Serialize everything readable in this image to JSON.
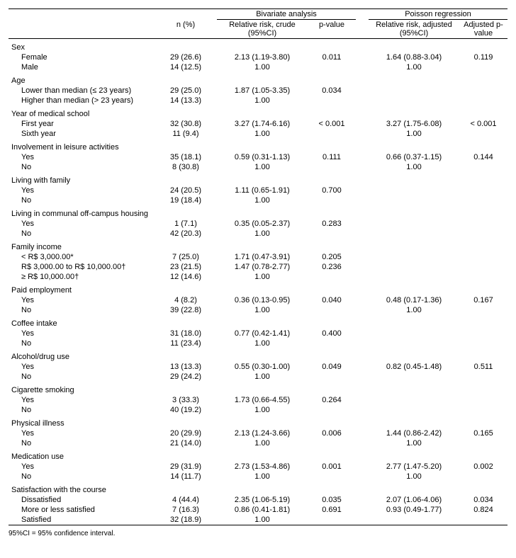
{
  "header": {
    "group_bivariate": "Bivariate analysis",
    "group_poisson": "Poisson regression",
    "col_n": "n (%)",
    "col_rr_crude": "Relative risk, crude (95%CI)",
    "col_p": "p-value",
    "col_rr_adj": "Relative risk, adjusted (95%CI)",
    "col_p_adj": "Adjusted p-value"
  },
  "sections": [
    {
      "label": "Sex",
      "rows": [
        {
          "label": "Female",
          "n": "29 (26.6)",
          "rr": "2.13 (1.19-3.80)",
          "p": "0.011",
          "rr_adj": "1.64 (0.88-3.04)",
          "p_adj": "0.119"
        },
        {
          "label": "Male",
          "n": "14 (12.5)",
          "rr": "1.00",
          "p": "",
          "rr_adj": "1.00",
          "p_adj": ""
        }
      ]
    },
    {
      "label": "Age",
      "rows": [
        {
          "label": "Lower than median (≤ 23 years)",
          "n": "29 (25.0)",
          "rr": "1.87 (1.05-3.35)",
          "p": "0.034",
          "rr_adj": "",
          "p_adj": ""
        },
        {
          "label": "Higher than median (> 23 years)",
          "n": "14 (13.3)",
          "rr": "1.00",
          "p": "",
          "rr_adj": "",
          "p_adj": ""
        }
      ]
    },
    {
      "label": "Year of medical school",
      "rows": [
        {
          "label": "First year",
          "n": "32 (30.8)",
          "rr": "3.27 (1.74-6.16)",
          "p": "< 0.001",
          "rr_adj": "3.27 (1.75-6.08)",
          "p_adj": "< 0.001"
        },
        {
          "label": "Sixth year",
          "n": "11 (9.4)",
          "rr": "1.00",
          "p": "",
          "rr_adj": "1.00",
          "p_adj": ""
        }
      ]
    },
    {
      "label": "Involvement in leisure activities",
      "rows": [
        {
          "label": "Yes",
          "n": "35 (18.1)",
          "rr": "0.59 (0.31-1.13)",
          "p": "0.111",
          "rr_adj": "0.66 (0.37-1.15)",
          "p_adj": "0.144"
        },
        {
          "label": "No",
          "n": "8 (30.8)",
          "rr": "1.00",
          "p": "",
          "rr_adj": "1.00",
          "p_adj": ""
        }
      ]
    },
    {
      "label": "Living with family",
      "rows": [
        {
          "label": "Yes",
          "n": "24 (20.5)",
          "rr": "1.11 (0.65-1.91)",
          "p": "0.700",
          "rr_adj": "",
          "p_adj": ""
        },
        {
          "label": "No",
          "n": "19 (18.4)",
          "rr": "1.00",
          "p": "",
          "rr_adj": "",
          "p_adj": ""
        }
      ]
    },
    {
      "label": "Living in communal off-campus housing",
      "rows": [
        {
          "label": "Yes",
          "n": "1 (7.1)",
          "rr": "0.35 (0.05-2.37)",
          "p": "0.283",
          "rr_adj": "",
          "p_adj": ""
        },
        {
          "label": "No",
          "n": "42 (20.3)",
          "rr": "1.00",
          "p": "",
          "rr_adj": "",
          "p_adj": ""
        }
      ]
    },
    {
      "label": "Family income",
      "rows": [
        {
          "label": "< R$ 3,000.00*",
          "n": "7 (25.0)",
          "rr": "1.71 (0.47-3.91)",
          "p": "0.205",
          "rr_adj": "",
          "p_adj": ""
        },
        {
          "label": "R$ 3,000.00 to R$ 10,000.00†",
          "n": "23 (21.5)",
          "rr": "1.47 (0.78-2.77)",
          "p": "0.236",
          "rr_adj": "",
          "p_adj": ""
        },
        {
          "label": "≥ R$ 10,000.00†",
          "n": "12 (14.6)",
          "rr": "1.00",
          "p": "",
          "rr_adj": "",
          "p_adj": ""
        }
      ]
    },
    {
      "label": "Paid employment",
      "rows": [
        {
          "label": "Yes",
          "n": "4 (8.2)",
          "rr": "0.36 (0.13-0.95)",
          "p": "0.040",
          "rr_adj": "0.48 (0.17-1.36)",
          "p_adj": "0.167"
        },
        {
          "label": "No",
          "n": "39 (22.8)",
          "rr": "1.00",
          "p": "",
          "rr_adj": "1.00",
          "p_adj": ""
        }
      ]
    },
    {
      "label": "Coffee intake",
      "rows": [
        {
          "label": "Yes",
          "n": "31 (18.0)",
          "rr": "0.77 (0.42-1.41)",
          "p": "0.400",
          "rr_adj": "",
          "p_adj": ""
        },
        {
          "label": "No",
          "n": "11 (23.4)",
          "rr": "1.00",
          "p": "",
          "rr_adj": "",
          "p_adj": ""
        }
      ]
    },
    {
      "label": "Alcohol/drug use",
      "rows": [
        {
          "label": "Yes",
          "n": "13 (13.3)",
          "rr": "0.55 (0.30-1.00)",
          "p": "0.049",
          "rr_adj": "0.82 (0.45-1.48)",
          "p_adj": "0.511"
        },
        {
          "label": "No",
          "n": "29 (24.2)",
          "rr": "1.00",
          "p": "",
          "rr_adj": "",
          "p_adj": ""
        }
      ]
    },
    {
      "label": "Cigarette smoking",
      "rows": [
        {
          "label": "Yes",
          "n": "3 (33.3)",
          "rr": "1.73 (0.66-4.55)",
          "p": "0.264",
          "rr_adj": "",
          "p_adj": ""
        },
        {
          "label": "No",
          "n": "40 (19.2)",
          "rr": "1.00",
          "p": "",
          "rr_adj": "",
          "p_adj": ""
        }
      ]
    },
    {
      "label": "Physical illness",
      "rows": [
        {
          "label": "Yes",
          "n": "20 (29.9)",
          "rr": "2.13 (1.24-3.66)",
          "p": "0.006",
          "rr_adj": "1.44 (0.86-2.42)",
          "p_adj": "0.165"
        },
        {
          "label": "No",
          "n": "21 (14.0)",
          "rr": "1.00",
          "p": "",
          "rr_adj": "1.00",
          "p_adj": ""
        }
      ]
    },
    {
      "label": "Medication use",
      "rows": [
        {
          "label": "Yes",
          "n": "29 (31.9)",
          "rr": "2.73 (1.53-4.86)",
          "p": "0.001",
          "rr_adj": "2.77 (1.47-5.20)",
          "p_adj": "0.002"
        },
        {
          "label": "No",
          "n": "14 (11.7)",
          "rr": "1.00",
          "p": "",
          "rr_adj": "1.00",
          "p_adj": ""
        }
      ]
    },
    {
      "label": "Satisfaction with the course",
      "rows": [
        {
          "label": "Dissatisfied",
          "n": "4 (44.4)",
          "rr": "2.35 (1.06-5.19)",
          "p": "0.035",
          "rr_adj": "2.07 (1.06-4.06)",
          "p_adj": "0.034"
        },
        {
          "label": "More or less satisfied",
          "n": "7 (16.3)",
          "rr": "0.86 (0.41-1.81)",
          "p": "0.691",
          "rr_adj": "0.93 (0.49-1.77)",
          "p_adj": "0.824"
        },
        {
          "label": "Satisfied",
          "n": "32 (18.9)",
          "rr": "1.00",
          "p": "",
          "rr_adj": "",
          "p_adj": ""
        }
      ]
    }
  ],
  "footer": "95%CI = 95% confidence interval."
}
